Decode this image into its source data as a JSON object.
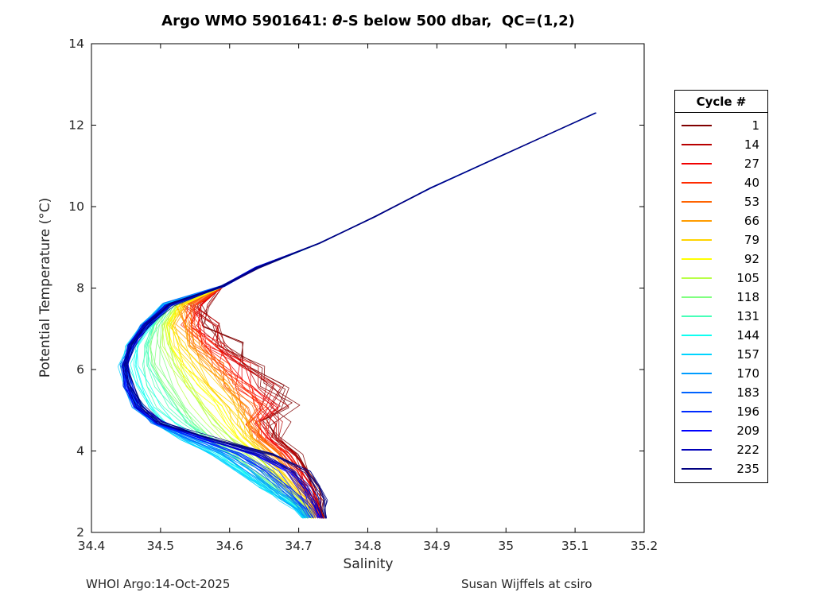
{
  "figure": {
    "title_prefix": "Argo WMO 5901641: ",
    "title_theta": "θ",
    "title_suffix": "-S below 500 dbar,  QC=(1,2)",
    "footer_left": "WHOI Argo:14-Oct-2025",
    "footer_right": "Susan Wijffels at csiro"
  },
  "chart_data": {
    "type": "line",
    "title": "Argo WMO 5901641: θ-S below 500 dbar,  QC=(1,2)",
    "xlabel": "Salinity",
    "ylabel": "Potential Temperature (°C)",
    "xlim": [
      34.4,
      35.2
    ],
    "ylim": [
      2,
      14
    ],
    "xticks": [
      34.4,
      34.5,
      34.6,
      34.7,
      34.8,
      34.9,
      35,
      35.1,
      35.2
    ],
    "xtick_labels": [
      "34.4",
      "34.5",
      "34.6",
      "34.7",
      "34.8",
      "34.9",
      "35",
      "35.1",
      "35.2"
    ],
    "yticks": [
      2,
      4,
      6,
      8,
      10,
      12,
      14
    ],
    "ytick_labels": [
      "2",
      "4",
      "6",
      "8",
      "10",
      "12",
      "14"
    ],
    "grid": false,
    "background": "#ffffff",
    "axis_color": "#000000",
    "tick_label_color": "#262626",
    "legend": {
      "title": "Cycle #",
      "position": "right-outside"
    },
    "series": [
      {
        "label": "1",
        "color": "#800000",
        "p": 0
      },
      {
        "label": "14",
        "color": "#B80000",
        "p": 0.056
      },
      {
        "label": "27",
        "color": "#F10000",
        "p": 0.111
      },
      {
        "label": "40",
        "color": "#FF2B00",
        "p": 0.167
      },
      {
        "label": "53",
        "color": "#FF6300",
        "p": 0.222
      },
      {
        "label": "66",
        "color": "#FF9C00",
        "p": 0.278
      },
      {
        "label": "79",
        "color": "#FFD400",
        "p": 0.333
      },
      {
        "label": "92",
        "color": "#FFFF00",
        "p": 0.389
      },
      {
        "label": "105",
        "color": "#B8FF47",
        "p": 0.444
      },
      {
        "label": "118",
        "color": "#80FF80",
        "p": 0.5
      },
      {
        "label": "131",
        "color": "#47FFB8",
        "p": 0.556
      },
      {
        "label": "144",
        "color": "#0EFFF1",
        "p": 0.611
      },
      {
        "label": "157",
        "color": "#00D4FF",
        "p": 0.667
      },
      {
        "label": "170",
        "color": "#009CFF",
        "p": 0.722
      },
      {
        "label": "183",
        "color": "#0063FF",
        "p": 0.778
      },
      {
        "label": "196",
        "color": "#002BFF",
        "p": 0.833
      },
      {
        "label": "209",
        "color": "#0000FF",
        "p": 0.889
      },
      {
        "label": "222",
        "color": "#0000B8",
        "p": 0.944
      },
      {
        "label": "235",
        "color": "#000080",
        "p": 1
      }
    ],
    "profile_family": {
      "note": "theta-S profile shape estimated from figure; all cycles share upper branch, lower branch interpolated between archetypes by cycle fraction p",
      "upper_branch_t": [
        12.3,
        11.3,
        10.45,
        9.75,
        9.1,
        8.5,
        8.05
      ],
      "upper_branch_s": [
        35.13,
        35.0,
        34.89,
        34.81,
        34.73,
        34.64,
        34.59
      ],
      "lower_t": [
        7.6,
        7.1,
        6.6,
        6.1,
        5.6,
        5.1,
        4.7,
        4.3,
        3.9,
        3.5,
        3.1,
        2.8,
        2.55,
        2.35
      ],
      "archetype_breakpoints": [
        0,
        0.3333,
        0.6667,
        1
      ],
      "archetype_s": [
        [
          34.555,
          34.575,
          34.6,
          34.635,
          34.665,
          34.68,
          34.665,
          34.67,
          34.7,
          34.715,
          34.725,
          34.73,
          34.733,
          34.737
        ],
        [
          34.53,
          34.52,
          34.53,
          34.55,
          34.575,
          34.6,
          34.615,
          34.63,
          34.655,
          34.675,
          34.695,
          34.71,
          34.718,
          34.722
        ],
        [
          34.505,
          34.475,
          34.455,
          34.445,
          34.45,
          34.465,
          34.49,
          34.53,
          34.575,
          34.61,
          34.645,
          34.675,
          34.695,
          34.705
        ],
        [
          34.515,
          34.48,
          34.46,
          34.45,
          34.455,
          34.47,
          34.5,
          34.575,
          34.665,
          34.715,
          34.73,
          34.735,
          34.737,
          34.74
        ]
      ]
    },
    "render_hints": {
      "replicas": 6,
      "jitter_s": 0.007,
      "warm_wiggle": 0.02,
      "line_width": 0.8,
      "opacity": 0.9
    }
  }
}
